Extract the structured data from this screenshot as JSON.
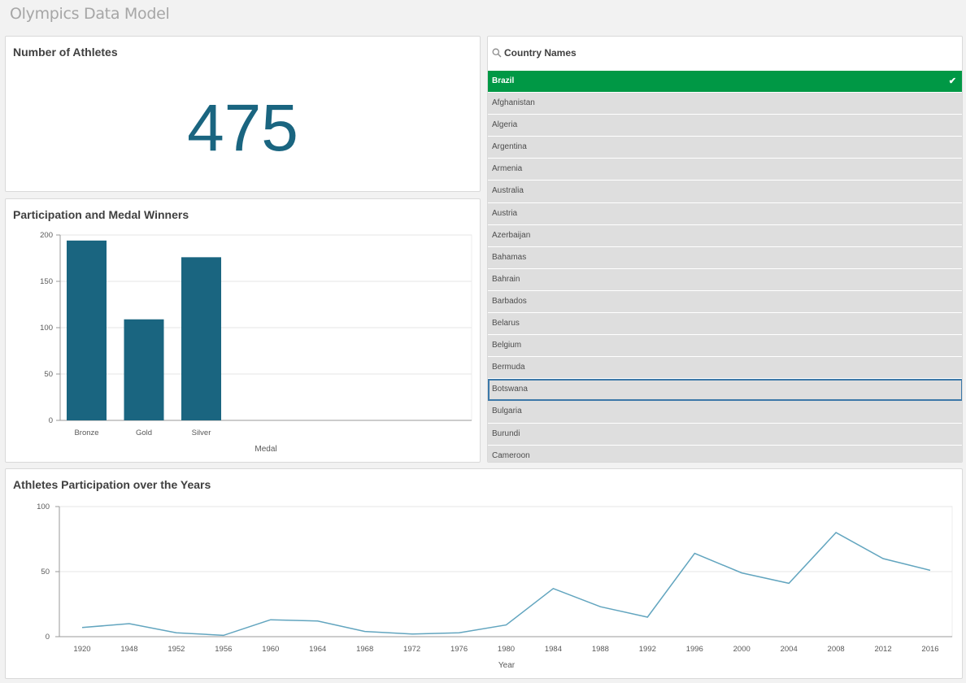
{
  "app": {
    "title": "Olympics Data Model"
  },
  "kpi": {
    "title": "Number of Athletes",
    "value": "475",
    "color": "#1a6580"
  },
  "filter": {
    "title": "Country Names",
    "selected_color": "#009845",
    "items": [
      {
        "label": "Brazil",
        "state": "selected"
      },
      {
        "label": "Afghanistan",
        "state": "normal"
      },
      {
        "label": "Algeria",
        "state": "normal"
      },
      {
        "label": "Argentina",
        "state": "normal"
      },
      {
        "label": "Armenia",
        "state": "normal"
      },
      {
        "label": "Australia",
        "state": "normal"
      },
      {
        "label": "Austria",
        "state": "normal"
      },
      {
        "label": "Azerbaijan",
        "state": "normal"
      },
      {
        "label": "Bahamas",
        "state": "normal"
      },
      {
        "label": "Bahrain",
        "state": "normal"
      },
      {
        "label": "Barbados",
        "state": "normal"
      },
      {
        "label": "Belarus",
        "state": "normal"
      },
      {
        "label": "Belgium",
        "state": "normal"
      },
      {
        "label": "Bermuda",
        "state": "normal"
      },
      {
        "label": "Botswana",
        "state": "focused"
      },
      {
        "label": "Bulgaria",
        "state": "normal"
      },
      {
        "label": "Burundi",
        "state": "normal"
      },
      {
        "label": "Cameroon",
        "state": "normal"
      }
    ],
    "check_icon": "checkmark-icon"
  },
  "chart_data": [
    {
      "type": "bar",
      "title": "Participation and Medal Winners",
      "categories": [
        "Bronze",
        "Gold",
        "Silver"
      ],
      "values": [
        194,
        109,
        176
      ],
      "xlabel": "Medal",
      "ylabel": "",
      "ylim": [
        0,
        200
      ],
      "yticks": [
        0,
        50,
        100,
        150,
        200
      ],
      "color": "#1a6580",
      "grid": true
    },
    {
      "type": "line",
      "title": "Athletes Participation over the Years",
      "x": [
        "1920",
        "1948",
        "1952",
        "1956",
        "1960",
        "1964",
        "1968",
        "1972",
        "1976",
        "1980",
        "1984",
        "1988",
        "1992",
        "1996",
        "2000",
        "2004",
        "2008",
        "2012",
        "2016"
      ],
      "values": [
        7,
        10,
        3,
        1,
        13,
        12,
        4,
        2,
        3,
        9,
        37,
        23,
        15,
        64,
        49,
        41,
        80,
        60,
        51
      ],
      "xlabel": "Year",
      "ylabel": "",
      "ylim": [
        0,
        100
      ],
      "yticks": [
        0,
        50,
        100
      ],
      "color": "#62a5bf",
      "grid": true
    }
  ]
}
